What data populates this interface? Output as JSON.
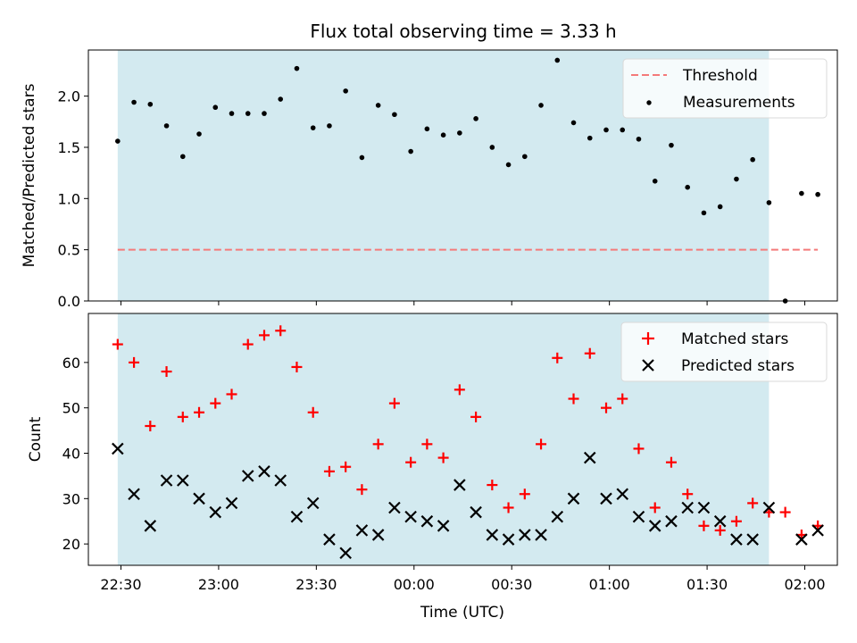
{
  "chart_data": [
    {
      "type": "scatter",
      "title": "Flux total observing time = 3.33 h",
      "xlabel": "",
      "ylabel": "Matched/Predicted stars",
      "ylim": [
        0,
        2.45
      ],
      "yticks": [
        "0.0",
        "0.5",
        "1.0",
        "1.5",
        "2.0"
      ],
      "ytick_values": [
        0,
        0.5,
        1.0,
        1.5,
        2.0
      ],
      "x_time_range": [
        "22:20",
        "02:10"
      ],
      "shaded_interval": [
        "22:29",
        "01:49"
      ],
      "shaded_color": "#d3eaf0",
      "legend_position": "top-right",
      "threshold": {
        "name": "Threshold",
        "value": 0.5,
        "x_range": [
          "22:29",
          "02:04"
        ],
        "color": "#f47a7a",
        "style": "dashed"
      },
      "series": [
        {
          "name": "Measurements",
          "marker": "dot",
          "color": "#000000",
          "x": [
            "22:29",
            "22:34",
            "22:39",
            "22:44",
            "22:49",
            "22:54",
            "22:59",
            "23:04",
            "23:09",
            "23:14",
            "23:19",
            "23:24",
            "23:29",
            "23:34",
            "23:39",
            "23:44",
            "23:49",
            "23:54",
            "23:59",
            "00:04",
            "00:09",
            "00:14",
            "00:19",
            "00:24",
            "00:29",
            "00:34",
            "00:39",
            "00:44",
            "00:49",
            "00:54",
            "00:59",
            "01:04",
            "01:09",
            "01:14",
            "01:19",
            "01:24",
            "01:29",
            "01:34",
            "01:39",
            "01:44",
            "01:49",
            "01:54",
            "01:59",
            "02:04"
          ],
          "values": [
            1.56,
            1.94,
            1.92,
            1.71,
            1.41,
            1.63,
            1.89,
            1.83,
            1.83,
            1.83,
            1.97,
            2.27,
            1.69,
            1.71,
            2.05,
            1.4,
            1.91,
            1.82,
            1.46,
            1.68,
            1.62,
            1.64,
            1.78,
            1.5,
            1.33,
            1.41,
            1.91,
            2.35,
            1.74,
            1.59,
            1.67,
            1.67,
            1.58,
            1.17,
            1.52,
            1.11,
            0.86,
            0.92,
            1.19,
            1.38,
            0.96,
            0.0,
            1.05,
            1.04
          ]
        }
      ]
    },
    {
      "type": "scatter",
      "title": "",
      "xlabel": "Time (UTC)",
      "ylabel": "Count",
      "ylim": [
        15.3,
        70.8
      ],
      "yticks": [
        "20",
        "30",
        "40",
        "50",
        "60"
      ],
      "ytick_values": [
        20,
        30,
        40,
        50,
        60
      ],
      "xticks": [
        "22:30",
        "23:00",
        "23:30",
        "00:00",
        "00:30",
        "01:00",
        "01:30",
        "02:00"
      ],
      "x_time_range": [
        "22:20",
        "02:10"
      ],
      "shaded_interval": [
        "22:29",
        "01:49"
      ],
      "shaded_color": "#d3eaf0",
      "legend_position": "top-right",
      "series": [
        {
          "name": "Matched stars",
          "marker": "plus",
          "color": "#ff0000",
          "x": [
            "22:29",
            "22:34",
            "22:39",
            "22:44",
            "22:49",
            "22:54",
            "22:59",
            "23:04",
            "23:09",
            "23:14",
            "23:19",
            "23:24",
            "23:29",
            "23:34",
            "23:39",
            "23:44",
            "23:49",
            "23:54",
            "23:59",
            "00:04",
            "00:09",
            "00:14",
            "00:19",
            "00:24",
            "00:29",
            "00:34",
            "00:39",
            "00:44",
            "00:49",
            "00:54",
            "00:59",
            "01:04",
            "01:09",
            "01:14",
            "01:19",
            "01:24",
            "01:29",
            "01:34",
            "01:39",
            "01:44",
            "01:49",
            "01:54",
            "01:59",
            "02:04"
          ],
          "values": [
            64,
            60,
            46,
            58,
            48,
            49,
            51,
            53,
            64,
            66,
            67,
            59,
            49,
            36,
            37,
            32,
            42,
            51,
            38,
            42,
            39,
            54,
            48,
            33,
            28,
            31,
            42,
            61,
            52,
            62,
            50,
            52,
            41,
            28,
            38,
            31,
            24,
            23,
            25,
            29,
            27,
            27,
            22,
            24
          ]
        },
        {
          "name": "Predicted stars",
          "marker": "x",
          "color": "#000000",
          "x": [
            "22:29",
            "22:34",
            "22:39",
            "22:44",
            "22:49",
            "22:54",
            "22:59",
            "23:04",
            "23:09",
            "23:14",
            "23:19",
            "23:24",
            "23:29",
            "23:34",
            "23:39",
            "23:44",
            "23:49",
            "23:54",
            "23:59",
            "00:04",
            "00:09",
            "00:14",
            "00:19",
            "00:24",
            "00:29",
            "00:34",
            "00:39",
            "00:44",
            "00:49",
            "00:54",
            "00:59",
            "01:04",
            "01:09",
            "01:14",
            "01:19",
            "01:24",
            "01:29",
            "01:34",
            "01:39",
            "01:44",
            "01:49",
            "01:59",
            "02:04"
          ],
          "values": [
            41,
            31,
            24,
            34,
            34,
            30,
            27,
            29,
            35,
            36,
            34,
            26,
            29,
            21,
            18,
            23,
            22,
            28,
            26,
            25,
            24,
            33,
            27,
            22,
            21,
            22,
            22,
            26,
            30,
            39,
            30,
            31,
            26,
            24,
            25,
            28,
            28,
            25,
            21,
            21,
            28,
            21,
            23
          ]
        }
      ]
    }
  ]
}
